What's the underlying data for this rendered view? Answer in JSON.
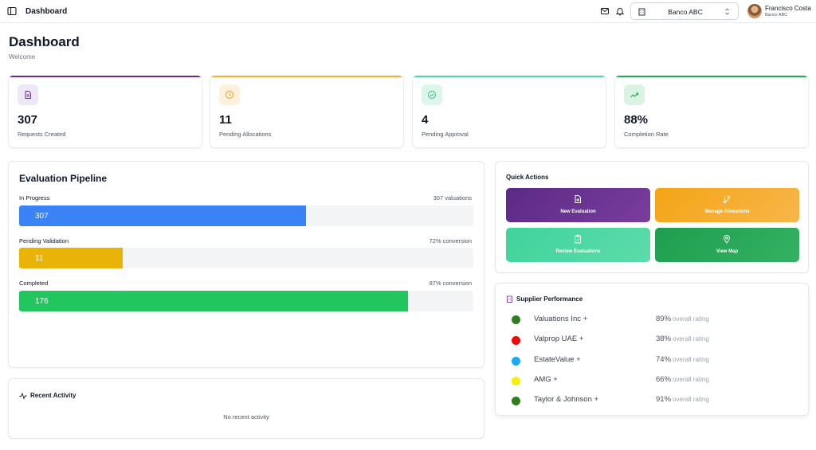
{
  "topbar": {
    "breadcrumb": "Dashboard",
    "bank": "Banco ABC",
    "user_name": "Francisco Costa",
    "user_org": "Banco ABC"
  },
  "header": {
    "title": "Dashboard",
    "subtitle": "Welcome"
  },
  "stats": [
    {
      "value": "307",
      "label": "Requests Created",
      "accent": "#6b2e8a",
      "icon": "document-icon"
    },
    {
      "value": "11",
      "label": "Pending Allocations",
      "accent": "#f2b233",
      "icon": "clock-icon"
    },
    {
      "value": "4",
      "label": "Pending Approval",
      "accent": "#4dd6a3",
      "icon": "check-circle-icon"
    },
    {
      "value": "88%",
      "label": "Completion Rate",
      "accent": "#23a55a",
      "icon": "trending-up-icon"
    }
  ],
  "pipeline": {
    "title": "Evaluation Pipeline",
    "stages": [
      {
        "label": "In Progress",
        "note": "307 valuations",
        "value": "307",
        "fraction": 0.632,
        "color": "#3b82f6"
      },
      {
        "label": "Pending Validation",
        "note": "72% conversion",
        "value": "11",
        "fraction": 0.228,
        "color": "#eab308"
      },
      {
        "label": "Completed",
        "note": "87% conversion",
        "value": "176",
        "fraction": 0.856,
        "color": "#22c55e"
      }
    ]
  },
  "quick_actions": {
    "title": "Quick Actions",
    "buttons": [
      {
        "label": "New Evaluation",
        "icon": "file-plus-icon"
      },
      {
        "label": "Manage Allocations",
        "icon": "git-branch-icon"
      },
      {
        "label": "Review Evaluations",
        "icon": "clipboard-check-icon"
      },
      {
        "label": "View Map",
        "icon": "map-pin-icon"
      }
    ]
  },
  "supplier_performance": {
    "title": "Supplier Performance",
    "rating_suffix": "overall rating",
    "suppliers": [
      {
        "name": "Valuations Inc",
        "plus": "+",
        "pct": "89%",
        "color": "#2f7d1e"
      },
      {
        "name": "Valprop UAE",
        "plus": "+",
        "pct": "38%",
        "color": "#ee0a0a"
      },
      {
        "name": "EstateValue",
        "plus": "+",
        "pct": "74%",
        "color": "#19aaf0"
      },
      {
        "name": "AMG",
        "plus": "+",
        "pct": "66%",
        "color": "#f5ef0c"
      },
      {
        "name": "Taylor & Johnson",
        "plus": "+",
        "pct": "91%",
        "color": "#2f7d1e"
      }
    ]
  },
  "recent_activity": {
    "title": "Recent Activity",
    "empty": "No recent activity"
  }
}
